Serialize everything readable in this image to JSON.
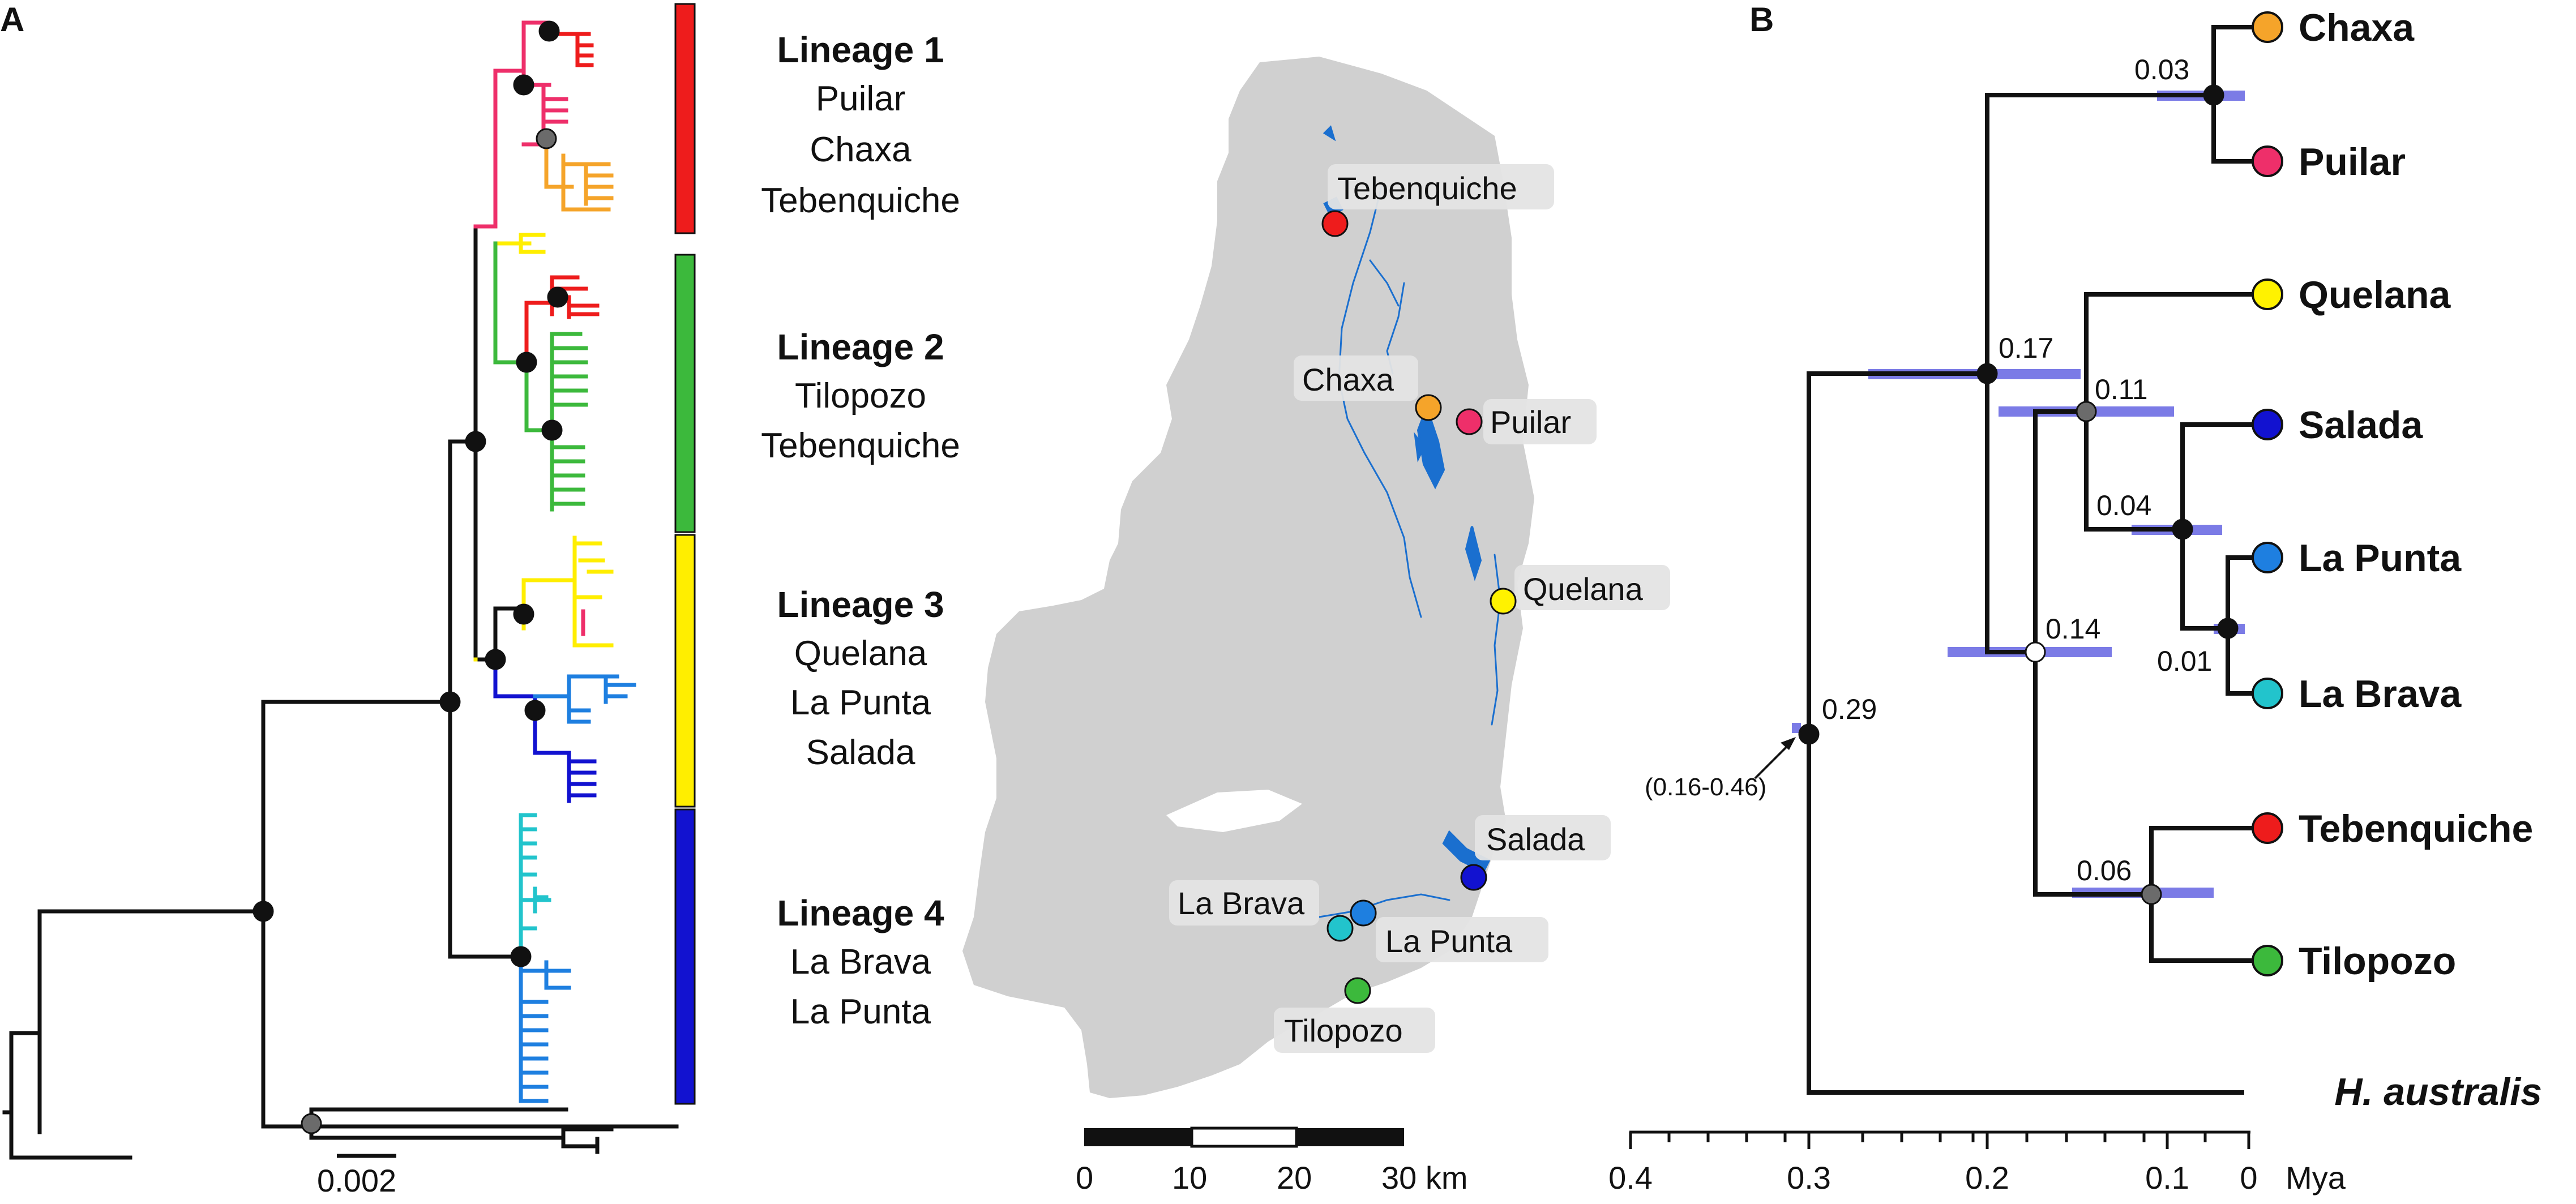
{
  "panel_a": {
    "letter": "A",
    "scale_label": "0.002",
    "lineages": [
      {
        "title": "Lineage 1",
        "sites": [
          "Puilar",
          "Chaxa",
          "Tebenquiche"
        ],
        "color": "#ee1c1c"
      },
      {
        "title": "Lineage 2",
        "sites": [
          "Tilopozo",
          "Tebenquiche"
        ],
        "color": "#3cb93c"
      },
      {
        "title": "Lineage 3",
        "sites": [
          "Quelana",
          "La Punta",
          "Salada"
        ],
        "color": "#ffee00"
      },
      {
        "title": "Lineage 4",
        "sites": [
          "La Brava",
          "La Punta"
        ],
        "color": "#1212d0"
      }
    ]
  },
  "map": {
    "sites": [
      {
        "name": "Tebenquiche",
        "color": "#ee1c1c"
      },
      {
        "name": "Chaxa",
        "color": "#f5a42a"
      },
      {
        "name": "Puilar",
        "color": "#ee2f6a"
      },
      {
        "name": "Quelana",
        "color": "#fff200"
      },
      {
        "name": "Salada",
        "color": "#1212d0"
      },
      {
        "name": "La Brava",
        "color": "#22c4cc"
      },
      {
        "name": "La Punta",
        "color": "#1e7fe0"
      },
      {
        "name": "Tilopozo",
        "color": "#3cb93c"
      }
    ],
    "scale_ticks": [
      "0",
      "10",
      "20",
      "30 km"
    ]
  },
  "panel_b": {
    "letter": "B",
    "tips": [
      {
        "name": "Chaxa",
        "color": "#f5a42a"
      },
      {
        "name": "Puilar",
        "color": "#ee2f6a"
      },
      {
        "name": "Quelana",
        "color": "#fff200"
      },
      {
        "name": "Salada",
        "color": "#1212d0"
      },
      {
        "name": "La Punta",
        "color": "#1e7fe0"
      },
      {
        "name": "La Brava",
        "color": "#22c4cc"
      },
      {
        "name": "Tebenquiche",
        "color": "#ee1c1c"
      },
      {
        "name": "Tilopozo",
        "color": "#3cb93c"
      }
    ],
    "outgroup": "H. australis",
    "node_ages": [
      "0.29",
      "0.17",
      "0.11",
      "0.14",
      "0.03",
      "0.04",
      "0.01",
      "0.06"
    ],
    "root_interval": "(0.16-0.46)",
    "axis_ticks": [
      "0.4",
      "0.3",
      "0.2",
      "0.1",
      "0"
    ],
    "axis_unit": "Mya"
  },
  "colors": {
    "hpd_bar": "#7b7be6",
    "node_black": "#111111",
    "node_grey": "#6b6b6b",
    "map_land": "#d0d0d0",
    "water": "#1a6fcf"
  }
}
